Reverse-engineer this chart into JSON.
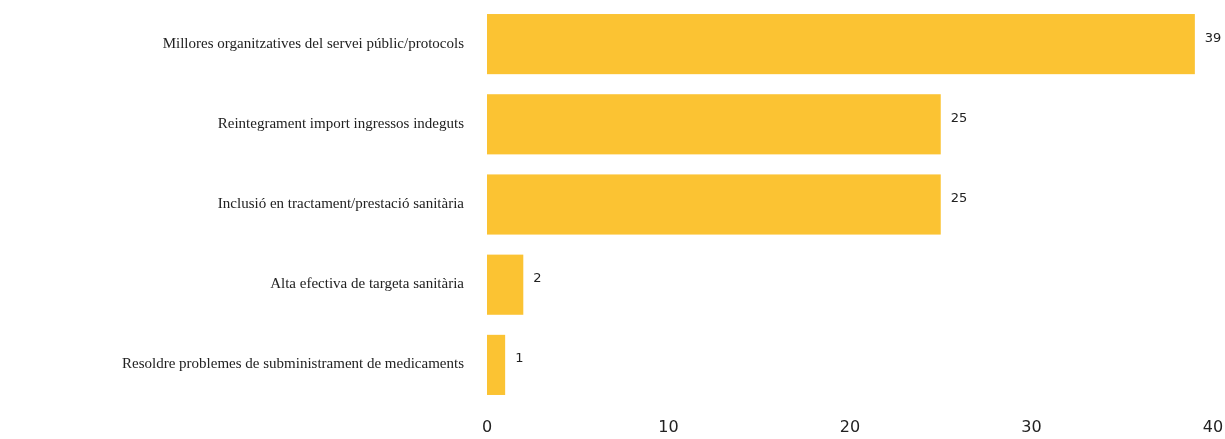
{
  "chart_data": {
    "type": "bar",
    "orientation": "horizontal",
    "categories": [
      "Millores organitzatives del servei públic/protocols",
      "Reintegrament import ingressos indeguts",
      "Inclusió en tractament/prestació sanitària",
      "Alta efectiva de targeta sanitària",
      "Resoldre problemes de subministrament de medicaments"
    ],
    "values": [
      39,
      25,
      25,
      2,
      1
    ],
    "color": "#fbc333",
    "xlim": [
      0,
      40
    ],
    "xticks": [
      0,
      10,
      20,
      30,
      40
    ],
    "data_labels": true,
    "grid": false
  }
}
